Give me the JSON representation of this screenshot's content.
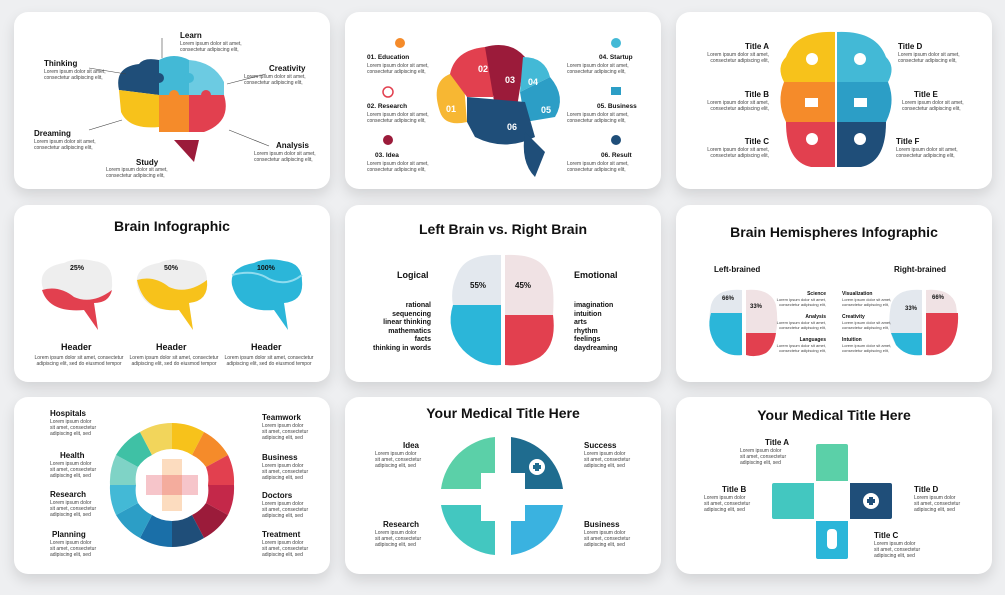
{
  "lorem": {
    "short": "Lorem ipsum dolor sit amet,",
    "short2": "consectetur adipiscing elit,",
    "mid1": "Lorem ipsum dolor",
    "mid2": "sit amet, consectetur",
    "mid3": "adipiscing elit, sed",
    "hdr1": "Lorem ipsum dolor sit amet, consectetur",
    "hdr2": "adipiscing elit, sed do eiusmod tempor"
  },
  "card1": {
    "labels": {
      "learn": "Learn",
      "thinking": "Thinking",
      "creativity": "Creativity",
      "dreaming": "Dreaming",
      "analysis": "Analysis",
      "study": "Study"
    },
    "colors": {
      "navy": "#1f4e79",
      "teal": "#43b9d6",
      "yellow": "#f7c21b",
      "orange": "#f58b2a",
      "red": "#e2404f",
      "maroon": "#9b1b3a"
    }
  },
  "card2": {
    "items": [
      {
        "label": "01. Education"
      },
      {
        "label": "02. Research"
      },
      {
        "label": "03. Idea"
      },
      {
        "label": "04. Startup"
      },
      {
        "label": "05. Business"
      },
      {
        "label": "06. Result"
      }
    ],
    "numbers": [
      "01",
      "02",
      "03",
      "04",
      "05",
      "06"
    ]
  },
  "card3": {
    "titles": {
      "a": "Title A",
      "b": "Title B",
      "c": "Title C",
      "d": "Title D",
      "e": "Title E",
      "f": "Title F"
    }
  },
  "card4": {
    "title": "Brain Infographic",
    "brains": [
      {
        "pct": "25%",
        "fill": 0.25,
        "color": "#e2404f",
        "header": "Header"
      },
      {
        "pct": "50%",
        "fill": 0.5,
        "color": "#f7c21b",
        "header": "Header"
      },
      {
        "pct": "100%",
        "fill": 1.0,
        "color": "#2bb6d9",
        "header": "Header"
      }
    ]
  },
  "card5": {
    "title": "Left Brain vs. Right Brain",
    "left_label": "Logical",
    "right_label": "Emotional",
    "left_pct": "55%",
    "right_pct": "45%",
    "left_list": [
      "rational",
      "sequencing",
      "linear thinking",
      "mathematics",
      "facts",
      "thinking in words"
    ],
    "right_list": [
      "imagination",
      "intuition",
      "arts",
      "rhythm",
      "feelings",
      "daydreaming"
    ]
  },
  "card6": {
    "title": "Brain Hemispheres Infographic",
    "left_label": "Left-brained",
    "right_label": "Right-brained",
    "left_pct1": "66%",
    "left_pct2": "33%",
    "right_pct1": "33%",
    "right_pct2": "66%",
    "left_topics": [
      "Science",
      "Analysis",
      "Languages"
    ],
    "right_topics": [
      "Visualization",
      "Creativity",
      "Intuition"
    ]
  },
  "card7": {
    "left": [
      "Hospitals",
      "Health",
      "Research",
      "Planning"
    ],
    "right": [
      "Teamwork",
      "Business",
      "Doctors",
      "Treatment"
    ]
  },
  "card8": {
    "title": "Your Medical Title Here",
    "idea": "Idea",
    "success": "Success",
    "research": "Research",
    "business": "Business"
  },
  "card9": {
    "title": "Your Medical Title Here",
    "a": "Title A",
    "b": "Title B",
    "c": "Title C",
    "d": "Title D"
  }
}
